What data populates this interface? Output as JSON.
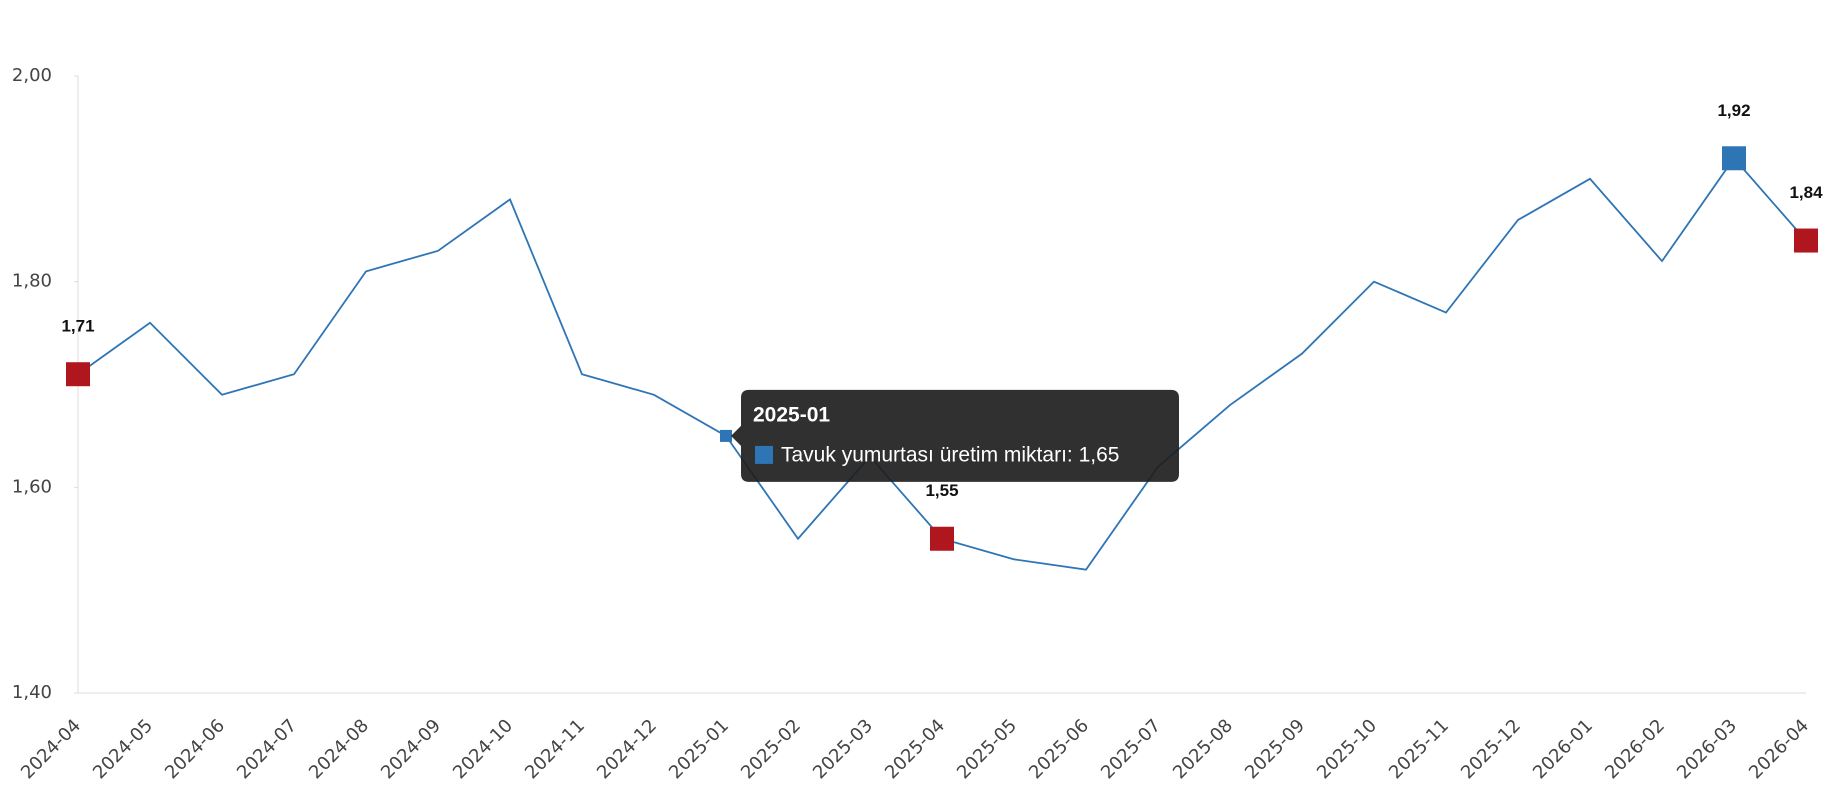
{
  "chart_data": {
    "type": "line",
    "categories": [
      "2024-04",
      "2024-05",
      "2024-06",
      "2024-07",
      "2024-08",
      "2024-09",
      "2024-10",
      "2024-11",
      "2024-12",
      "2025-01",
      "2025-02",
      "2025-03",
      "2025-04",
      "2025-05",
      "2025-06",
      "2025-07",
      "2025-08",
      "2025-09",
      "2025-10",
      "2025-11",
      "2025-12",
      "2026-01",
      "2026-02",
      "2026-03",
      "2026-04"
    ],
    "series": [
      {
        "name": "Tavuk yumurtası üretim miktarı",
        "color": "#2e75b6",
        "values": [
          1.71,
          1.76,
          1.69,
          1.71,
          1.81,
          1.83,
          1.88,
          1.71,
          1.69,
          1.65,
          1.55,
          1.63,
          1.55,
          1.53,
          1.52,
          1.62,
          1.68,
          1.73,
          1.8,
          1.77,
          1.86,
          1.9,
          1.82,
          1.92,
          1.84
        ]
      }
    ],
    "ylim": [
      1.4,
      2.0
    ],
    "yticks": [
      {
        "value": 1.4,
        "label": "1,40"
      },
      {
        "value": 1.6,
        "label": "1,60"
      },
      {
        "value": 1.8,
        "label": "1,80"
      },
      {
        "value": 2.0,
        "label": "2,00"
      }
    ],
    "grid": false,
    "highlights": [
      {
        "category": "2024-04",
        "label": "1,71",
        "color": "#b0161e"
      },
      {
        "category": "2025-04",
        "label": "1,55",
        "color": "#b0161e"
      },
      {
        "category": "2026-03",
        "label": "1,92",
        "color": "#2e75b6"
      },
      {
        "category": "2026-04",
        "label": "1,84",
        "color": "#b0161e"
      }
    ],
    "tooltip": {
      "title": "2025-01",
      "text": "Tavuk yumurtası üretim miktarı: 1,65"
    }
  }
}
